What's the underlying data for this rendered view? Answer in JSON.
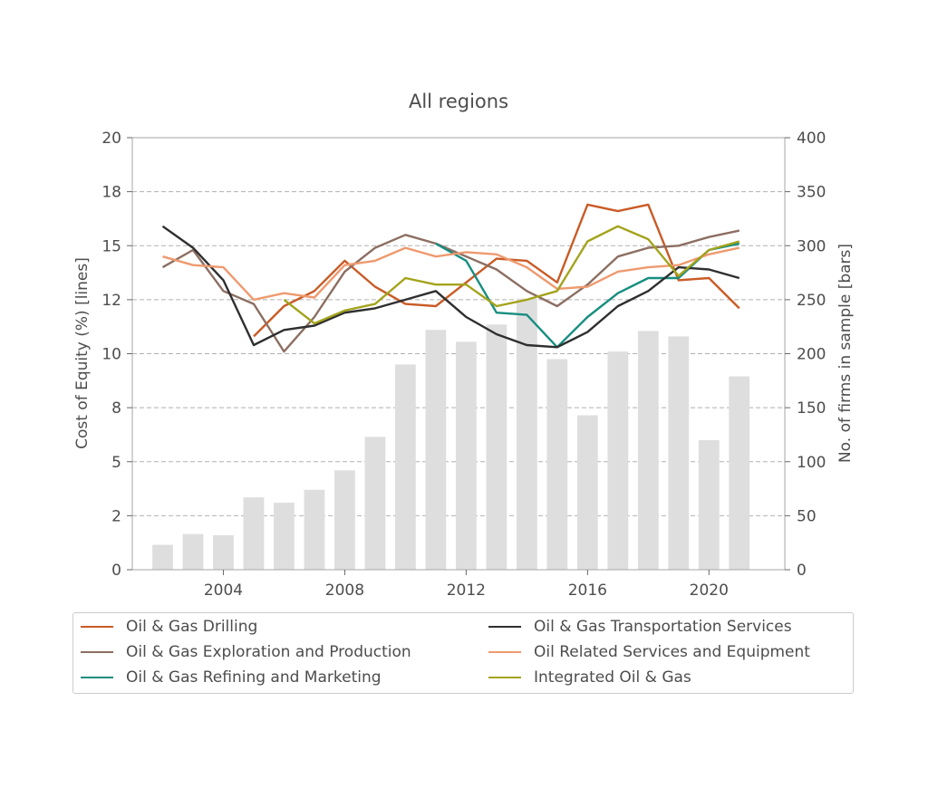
{
  "chart_data": {
    "type": "line",
    "title": "All regions",
    "ylabel_left": "Cost of Equity (%)  [lines]",
    "ylabel_right": "No. of firms in sample  [bars]",
    "ylim_left": [
      0,
      20
    ],
    "ylim_right": [
      0,
      400
    ],
    "xlim": [
      2001,
      2022.5
    ],
    "yticks_left": [
      0,
      2,
      5,
      8,
      10,
      12,
      15,
      18,
      20
    ],
    "yticks_left_values": [
      0,
      2.5,
      5,
      7.5,
      10,
      12.5,
      15,
      17.5,
      20
    ],
    "yticks_right": [
      0,
      50,
      100,
      150,
      200,
      250,
      300,
      350,
      400
    ],
    "xticks": [
      2004,
      2008,
      2012,
      2016,
      2020
    ],
    "grid": "horizontal dashed",
    "legend_position": "bottom",
    "bar_color": "#dedede",
    "bars": {
      "x": [
        2002,
        2003,
        2004,
        2005,
        2006,
        2007,
        2008,
        2009,
        2010,
        2011,
        2012,
        2013,
        2014,
        2015,
        2016,
        2017,
        2018,
        2019,
        2020,
        2021
      ],
      "values": [
        23,
        33,
        32,
        67,
        62,
        74,
        92,
        123,
        190,
        222,
        211,
        227,
        251,
        195,
        143,
        202,
        221,
        216,
        120,
        179
      ]
    },
    "series": [
      {
        "name": "Oil & Gas Drilling",
        "color": "#c95b26",
        "x": [
          2005,
          2006,
          2007,
          2008,
          2009,
          2010,
          2011,
          2012,
          2013,
          2014,
          2015,
          2016,
          2017,
          2018,
          2019,
          2020,
          2021
        ],
        "values": [
          10.8,
          12.2,
          12.9,
          14.3,
          13.1,
          12.3,
          12.2,
          13.3,
          14.4,
          14.3,
          13.3,
          16.9,
          16.6,
          16.9,
          13.4,
          13.5,
          12.1
        ]
      },
      {
        "name": "Oil & Gas Exploration and Production",
        "color": "#8c6e62",
        "x": [
          2002,
          2003,
          2004,
          2005,
          2006,
          2007,
          2008,
          2009,
          2010,
          2011,
          2012,
          2013,
          2014,
          2015,
          2016,
          2017,
          2018,
          2019,
          2020,
          2021
        ],
        "values": [
          14.0,
          14.8,
          12.9,
          12.3,
          10.1,
          11.7,
          13.8,
          14.9,
          15.5,
          15.1,
          14.5,
          13.9,
          12.9,
          12.2,
          13.2,
          14.5,
          14.9,
          15.0,
          15.4,
          15.7
        ]
      },
      {
        "name": "Oil & Gas Refining and Marketing",
        "color": "#178e80",
        "x": [
          2011,
          2012,
          2013,
          2014,
          2015,
          2016,
          2017,
          2018,
          2019,
          2020,
          2021
        ],
        "values": [
          15.1,
          14.3,
          11.9,
          11.8,
          10.3,
          11.7,
          12.8,
          13.5,
          13.5,
          14.8,
          15.1
        ]
      },
      {
        "name": "Oil & Gas Transportation Services",
        "color": "#2f2f2f",
        "x": [
          2002,
          2003,
          2004,
          2005,
          2006,
          2007,
          2008,
          2009,
          2010,
          2011,
          2012,
          2013,
          2014,
          2015,
          2016,
          2017,
          2018,
          2019,
          2020,
          2021
        ],
        "values": [
          15.9,
          14.9,
          13.4,
          10.4,
          11.1,
          11.3,
          11.9,
          12.1,
          12.5,
          12.9,
          11.7,
          10.9,
          10.4,
          10.3,
          11.0,
          12.2,
          12.9,
          14.0,
          13.9,
          13.5
        ]
      },
      {
        "name": "Oil Related Services and Equipment",
        "color": "#ee9a6f",
        "x": [
          2002,
          2003,
          2004,
          2005,
          2006,
          2007,
          2008,
          2009,
          2010,
          2011,
          2012,
          2013,
          2014,
          2015,
          2016,
          2017,
          2018,
          2019,
          2020,
          2021
        ],
        "values": [
          14.5,
          14.1,
          14.0,
          12.5,
          12.8,
          12.6,
          14.1,
          14.3,
          14.9,
          14.5,
          14.7,
          14.6,
          14.0,
          13.0,
          13.1,
          13.8,
          14.0,
          14.1,
          14.6,
          14.9
        ]
      },
      {
        "name": "Integrated Oil & Gas",
        "color": "#a3a31c",
        "x": [
          2006,
          2007,
          2008,
          2009,
          2010,
          2011,
          2012,
          2013,
          2014,
          2015,
          2016,
          2017,
          2018,
          2019,
          2020,
          2021
        ],
        "values": [
          12.5,
          11.4,
          12.0,
          12.3,
          13.5,
          13.2,
          13.2,
          12.2,
          12.5,
          12.9,
          15.2,
          15.9,
          15.3,
          13.6,
          14.8,
          15.2
        ]
      }
    ]
  }
}
